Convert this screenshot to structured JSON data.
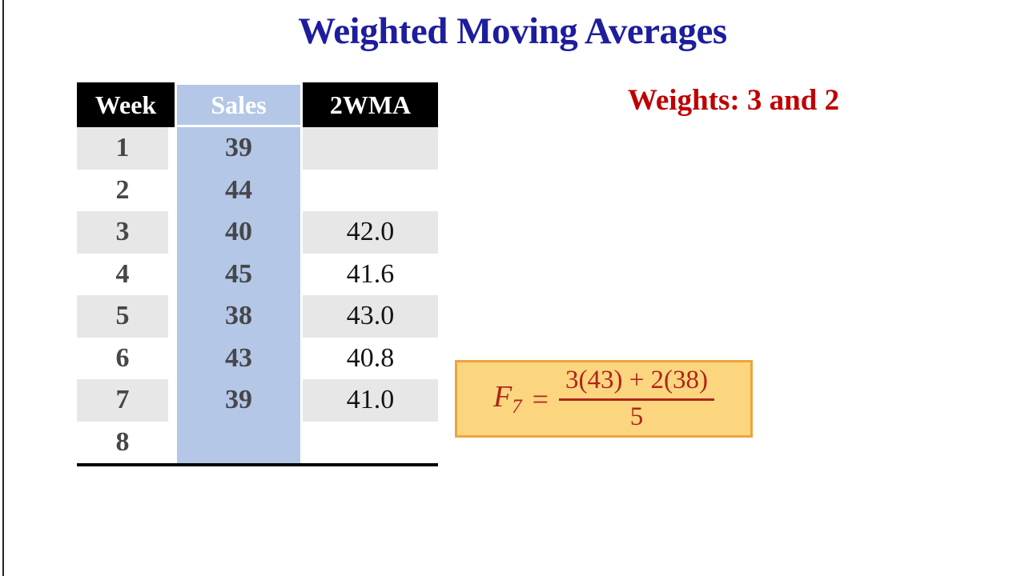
{
  "slide": {
    "title": "Weighted Moving Averages",
    "weights_label": "Weights: 3 and 2"
  },
  "table": {
    "columns": [
      "Week",
      "Sales",
      "2WMA"
    ],
    "highlighted_column": "Sales",
    "rows": [
      {
        "week": "1",
        "sales": "39",
        "wma": ""
      },
      {
        "week": "2",
        "sales": "44",
        "wma": ""
      },
      {
        "week": "3",
        "sales": "40",
        "wma": "42.0"
      },
      {
        "week": "4",
        "sales": "45",
        "wma": "41.6"
      },
      {
        "week": "5",
        "sales": "38",
        "wma": "43.0"
      },
      {
        "week": "6",
        "sales": "43",
        "wma": "40.8"
      },
      {
        "week": "7",
        "sales": "39",
        "wma": "41.0"
      },
      {
        "week": "8",
        "sales": "",
        "wma": ""
      }
    ]
  },
  "formula": {
    "lhs_symbol": "F",
    "lhs_subscript": "7",
    "equals_sign": "=",
    "numerator": "3(43) + 2(38)",
    "denominator": "5"
  },
  "colors": {
    "title_blue": "#1d1d9e",
    "weights_red": "#c00000",
    "formula_red": "#ad261b",
    "box_fill": "#fcd57f",
    "box_border": "#eaa53f",
    "header_bg": "#000000",
    "header_text": "#ffffff",
    "sales_fill": "#b4c7e7",
    "row_gray": "#e8e7e7",
    "num_gray": "#46474a",
    "wma_black": "#141414"
  }
}
